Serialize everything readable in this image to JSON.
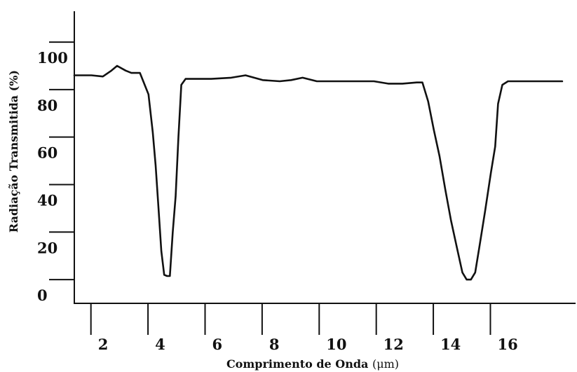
{
  "chart_data": {
    "type": "line",
    "xlabel": "Comprimento de Onda",
    "xlabel_unit": "(μm)",
    "ylabel": "Radiação Transmitida (%)",
    "xlim": [
      1.0,
      18.2
    ],
    "ylim": [
      -10,
      113
    ],
    "grid": false,
    "x_ticks": [
      2,
      4,
      6,
      8,
      10,
      12,
      14,
      16
    ],
    "y_ticks": [
      0,
      20,
      40,
      60,
      80,
      100
    ],
    "series": [
      {
        "x": [
          1.0,
          1.3,
          1.6,
          2.0,
          2.3,
          2.5,
          2.8,
          3.0,
          3.3,
          3.6,
          3.75,
          3.85,
          3.95,
          4.05,
          4.15,
          4.25,
          4.35,
          4.45,
          4.55,
          4.65,
          4.75,
          4.9,
          5.3,
          5.8,
          6.5,
          7.0,
          7.6,
          8.2,
          8.6,
          9.0,
          9.5,
          10.0,
          10.5,
          11.0,
          11.5,
          12.0,
          12.5,
          13.0,
          13.2,
          13.4,
          13.6,
          13.8,
          14.0,
          14.2,
          14.4,
          14.6,
          14.75,
          14.9,
          15.05,
          15.2,
          15.4,
          15.6,
          15.75,
          15.85,
          16.0,
          16.2,
          16.7,
          17.2,
          17.7,
          18.1
        ],
        "y": [
          86,
          86,
          86,
          85.5,
          88,
          90,
          88,
          87,
          87,
          78,
          62,
          48,
          30,
          12,
          2,
          1.5,
          1.5,
          20,
          35,
          60,
          82,
          84.5,
          84.5,
          84.5,
          85,
          86,
          84,
          83.5,
          84,
          85,
          83.5,
          83.5,
          83.5,
          83.5,
          83.5,
          82.5,
          82.5,
          83,
          83,
          75,
          63,
          52,
          38,
          25,
          14,
          3,
          0,
          0,
          3,
          14,
          29,
          45,
          56,
          74,
          82,
          83.5,
          83.5,
          83.5,
          83.5,
          83.5
        ]
      }
    ]
  }
}
